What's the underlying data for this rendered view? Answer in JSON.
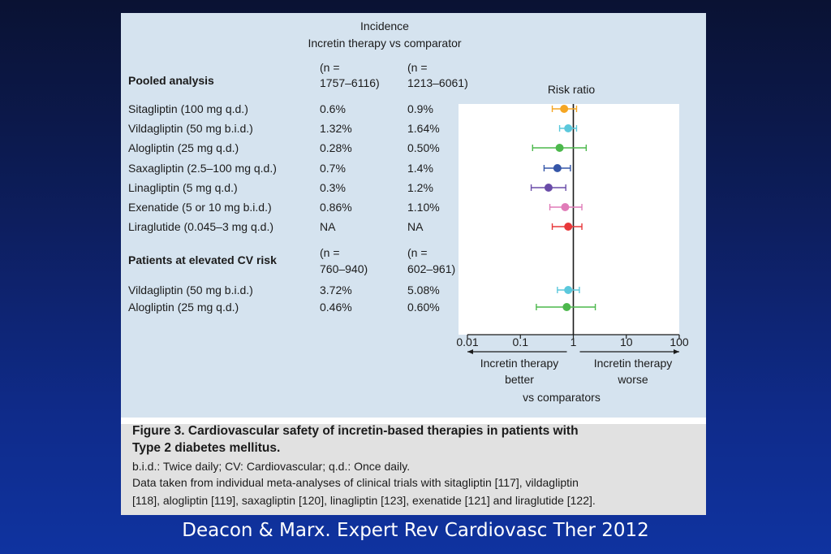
{
  "incidence_header": {
    "line1": "Incidence",
    "line2": "Incretin therapy vs comparator"
  },
  "sections": [
    {
      "title": "Pooled analysis",
      "n_incretin": [
        "(n =",
        "1757–6116)"
      ],
      "n_comparator": [
        "(n =",
        "1213–6061)"
      ],
      "rows": [
        {
          "drug": "Sitagliptin (100 mg q.d.)",
          "incretin": "0.6%",
          "comparator": "0.9%"
        },
        {
          "drug": "Vildagliptin (50 mg b.i.d.)",
          "incretin": "1.32%",
          "comparator": "1.64%"
        },
        {
          "drug": "Alogliptin (25 mg q.d.)",
          "incretin": "0.28%",
          "comparator": "0.50%"
        },
        {
          "drug": "Saxagliptin (2.5–100 mg q.d.)",
          "incretin": "0.7%",
          "comparator": "1.4%"
        },
        {
          "drug": "Linagliptin (5 mg q.d.)",
          "incretin": "0.3%",
          "comparator": "1.2%"
        },
        {
          "drug": "Exenatide (5 or 10 mg b.i.d.)",
          "incretin": "0.86%",
          "comparator": "1.10%"
        },
        {
          "drug": "Liraglutide (0.045–3 mg q.d.)",
          "incretin": "NA",
          "comparator": "NA"
        }
      ]
    },
    {
      "title": "Patients at elevated CV risk",
      "n_incretin": [
        "(n =",
        "760–940)"
      ],
      "n_comparator": [
        "(n =",
        "602–961)"
      ],
      "rows": [
        {
          "drug": "Vildagliptin (50 mg b.i.d.)",
          "incretin": "3.72%",
          "comparator": "5.08%"
        },
        {
          "drug": "Alogliptin (25 mg q.d.)",
          "incretin": "0.46%",
          "comparator": "0.60%"
        }
      ]
    }
  ],
  "chart_data": {
    "type": "scatter",
    "subtype": "forest-plot",
    "title": "Risk ratio",
    "x_scale": "log",
    "xlim": [
      0.01,
      100
    ],
    "x_ticks": [
      0.01,
      0.1,
      1,
      10,
      100
    ],
    "x_tick_labels": [
      "0.01",
      "0.1",
      "1",
      "10",
      "100"
    ],
    "reference_line": 1,
    "direction_labels": {
      "left": [
        "Incretin therapy",
        "better"
      ],
      "right": [
        "Incretin therapy",
        "worse"
      ],
      "bottom": "vs comparators"
    },
    "series": [
      {
        "label": "Sitagliptin (100 mg q.d.)",
        "ratio": 0.67,
        "ci": [
          0.4,
          1.15
        ],
        "color": "#f5a623"
      },
      {
        "label": "Vildagliptin (50 mg b.i.d.)",
        "ratio": 0.8,
        "ci": [
          0.55,
          1.15
        ],
        "color": "#5bc8dc"
      },
      {
        "label": "Alogliptin (25 mg q.d.)",
        "ratio": 0.55,
        "ci": [
          0.17,
          1.75
        ],
        "color": "#4cb84c"
      },
      {
        "label": "Saxagliptin (2.5–100 mg q.d.)",
        "ratio": 0.5,
        "ci": [
          0.28,
          0.88
        ],
        "color": "#3556a8"
      },
      {
        "label": "Linagliptin (5 mg q.d.)",
        "ratio": 0.34,
        "ci": [
          0.16,
          0.72
        ],
        "color": "#6a4ca8"
      },
      {
        "label": "Exenatide (5 or 10 mg b.i.d.)",
        "ratio": 0.7,
        "ci": [
          0.36,
          1.45
        ],
        "color": "#e07cb8"
      },
      {
        "label": "Liraglutide (0.045–3 mg q.d.)",
        "ratio": 0.8,
        "ci": [
          0.4,
          1.45
        ],
        "color": "#e8383a"
      },
      {
        "label": "Vildagliptin (50 mg b.i.d.) (elevated CV risk)",
        "ratio": 0.8,
        "ci": [
          0.5,
          1.3
        ],
        "color": "#5bc8dc"
      },
      {
        "label": "Alogliptin (25 mg q.d.) (elevated CV risk)",
        "ratio": 0.75,
        "ci": [
          0.2,
          2.6
        ],
        "color": "#4cb84c"
      }
    ]
  },
  "caption": {
    "title_line1": "Figure 3. Cardiovascular safety of incretin-based therapies in patients with",
    "title_line2": "Type 2 diabetes mellitus.",
    "line3": "b.i.d.: Twice daily; CV: Cardiovascular; q.d.: Once daily.",
    "line4": "Data taken from individual meta-analyses of clinical trials with sitagliptin [117], vildagliptin",
    "line5": "[118], alogliptin [119], saxagliptin [120], linagliptin [123], exenatide [121] and liraglutide [122]."
  },
  "citation": "Deacon & Marx. Expert Rev Cardiovasc Ther 2012"
}
